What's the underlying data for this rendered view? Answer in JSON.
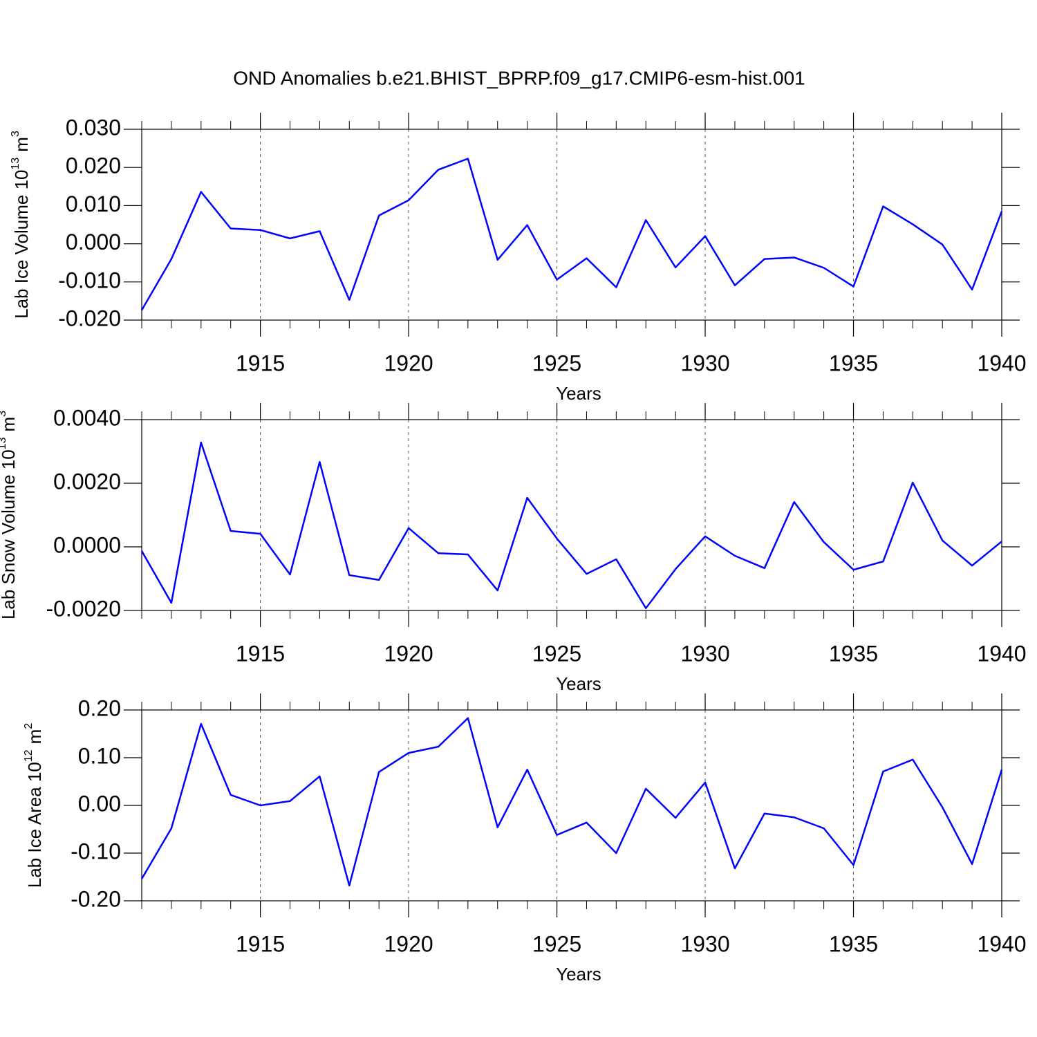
{
  "chart_data": [
    {
      "type": "line",
      "title": "OND Anomalies b.e21.BHIST_BPRP.f09_g17.CMIP6-esm-hist.001",
      "ylabel": {
        "text": "Lab Ice Volume 10",
        "power": "13",
        "unit": "m",
        "unit_power": "3"
      },
      "xlabel": "Years",
      "color": "#0000ff",
      "grid": true,
      "x": [
        1911,
        1912,
        1913,
        1914,
        1915,
        1916,
        1917,
        1918,
        1919,
        1920,
        1921,
        1922,
        1923,
        1924,
        1925,
        1926,
        1927,
        1928,
        1929,
        1930,
        1931,
        1932,
        1933,
        1934,
        1935,
        1936,
        1937,
        1938,
        1939,
        1940
      ],
      "values": [
        -0.0174,
        -0.004,
        0.0136,
        0.004,
        0.0036,
        0.0014,
        0.0033,
        -0.0147,
        0.0074,
        0.0114,
        0.0194,
        0.0223,
        -0.0042,
        0.0049,
        -0.0094,
        -0.0038,
        -0.0114,
        0.0062,
        -0.0062,
        0.002,
        -0.0109,
        -0.004,
        -0.0036,
        -0.0063,
        -0.0112,
        0.0098,
        0.0051,
        -0.0002,
        -0.012,
        0.0085
      ],
      "xlim": [
        1911,
        1940
      ],
      "xticks": [
        1915,
        1920,
        1925,
        1930,
        1935,
        1940
      ],
      "ylim": [
        -0.02,
        0.03
      ],
      "yticks": [
        {
          "value": -0.02,
          "label": "-0.020"
        },
        {
          "value": -0.01,
          "label": "-0.010"
        },
        {
          "value": 0,
          "label": "0.000"
        },
        {
          "value": 0.01,
          "label": "0.010"
        },
        {
          "value": 0.02,
          "label": "0.020"
        },
        {
          "value": 0.03,
          "label": "0.030"
        }
      ]
    },
    {
      "type": "line",
      "ylabel": {
        "text": "Lab Snow Volume 10",
        "power": "13",
        "unit": "m",
        "unit_power": "3"
      },
      "xlabel": "Years",
      "color": "#0000ff",
      "grid": true,
      "x": [
        1911,
        1912,
        1913,
        1914,
        1915,
        1916,
        1917,
        1918,
        1919,
        1920,
        1921,
        1922,
        1923,
        1924,
        1925,
        1926,
        1927,
        1928,
        1929,
        1930,
        1931,
        1932,
        1933,
        1934,
        1935,
        1936,
        1937,
        1938,
        1939,
        1940
      ],
      "values": [
        -0.00013,
        -0.00176,
        0.00328,
        0.0005,
        0.00041,
        -0.00087,
        0.00267,
        -0.00089,
        -0.00104,
        0.00059,
        -0.0002,
        -0.00024,
        -0.00137,
        0.00154,
        0.00026,
        -0.00085,
        -0.00039,
        -0.00193,
        -0.0007,
        0.00033,
        -0.00028,
        -0.00067,
        0.00141,
        0.00015,
        -0.00072,
        -0.00046,
        0.00202,
        0.0002,
        -0.00059,
        0.00017
      ],
      "xlim": [
        1911,
        1940
      ],
      "xticks": [
        1915,
        1920,
        1925,
        1930,
        1935,
        1940
      ],
      "ylim": [
        -0.002,
        0.004
      ],
      "yticks": [
        {
          "value": -0.002,
          "label": "-0.0020"
        },
        {
          "value": 0,
          "label": "0.0000"
        },
        {
          "value": 0.002,
          "label": "0.0020"
        },
        {
          "value": 0.004,
          "label": "0.0040"
        }
      ]
    },
    {
      "type": "line",
      "ylabel": {
        "text": "Lab Ice Area 10",
        "power": "12",
        "unit": "m",
        "unit_power": "2"
      },
      "xlabel": "Years",
      "color": "#0000ff",
      "grid": true,
      "x": [
        1911,
        1912,
        1913,
        1914,
        1915,
        1916,
        1917,
        1918,
        1919,
        1920,
        1921,
        1922,
        1923,
        1924,
        1925,
        1926,
        1927,
        1928,
        1929,
        1930,
        1931,
        1932,
        1933,
        1934,
        1935,
        1936,
        1937,
        1938,
        1939,
        1940
      ],
      "values": [
        -0.154,
        -0.048,
        0.171,
        0.022,
        0,
        0.009,
        0.061,
        -0.168,
        0.07,
        0.11,
        0.123,
        0.183,
        -0.046,
        0.075,
        -0.062,
        -0.036,
        -0.1,
        0.035,
        -0.026,
        0.048,
        -0.132,
        -0.017,
        -0.025,
        -0.048,
        -0.125,
        0.071,
        0.096,
        -0.004,
        -0.123,
        0.075
      ],
      "xlim": [
        1911,
        1940
      ],
      "xticks": [
        1915,
        1920,
        1925,
        1930,
        1935,
        1940
      ],
      "ylim": [
        -0.2,
        0.2
      ],
      "yticks": [
        {
          "value": -0.2,
          "label": "-0.20"
        },
        {
          "value": -0.1,
          "label": "-0.10"
        },
        {
          "value": 0,
          "label": "0.00"
        },
        {
          "value": 0.1,
          "label": "0.10"
        },
        {
          "value": 0.2,
          "label": "0.20"
        }
      ]
    }
  ]
}
